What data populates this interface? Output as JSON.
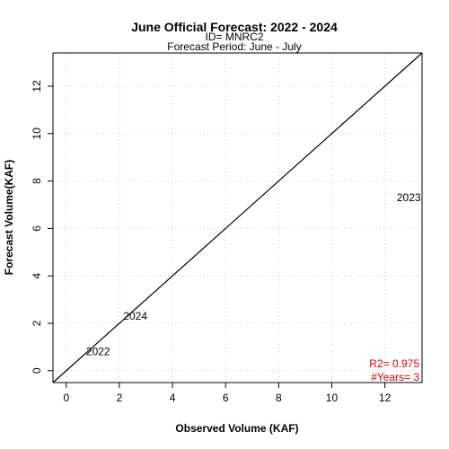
{
  "chart_data": {
    "type": "scatter",
    "title": "June Official Forecast: 2022 - 2024",
    "id_line": "ID= MNRC2",
    "period_line": "Forecast Period:  June - July",
    "xlabel": "Observed Volume (KAF)",
    "ylabel": "Forecast Volume(KAF)",
    "xlim": [
      -0.5,
      13.4
    ],
    "ylim": [
      -0.5,
      13.4
    ],
    "x_ticks": [
      "0",
      "2",
      "4",
      "6",
      "8",
      "10",
      "12"
    ],
    "y_ticks": [
      "0",
      "2",
      "4",
      "6",
      "8",
      "10",
      "12"
    ],
    "grid": true,
    "reference_line": "1:1",
    "points": [
      {
        "label": "2022",
        "x": 1.2,
        "y": 0.8
      },
      {
        "label": "2023",
        "x": 12.9,
        "y": 7.3
      },
      {
        "label": "2024",
        "x": 2.6,
        "y": 2.3
      }
    ],
    "stats": {
      "r2": "R2=  0.975",
      "years": "#Years=  3",
      "color": "#dd0000"
    }
  }
}
